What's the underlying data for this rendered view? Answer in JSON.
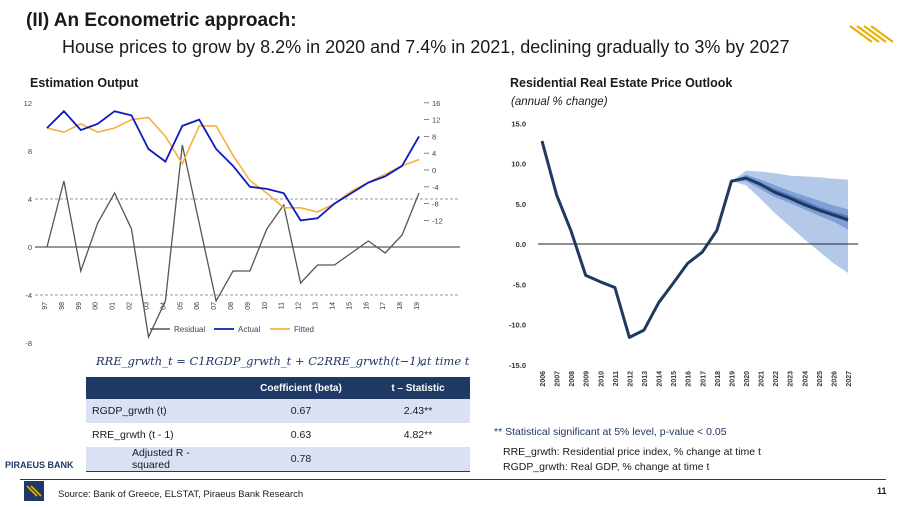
{
  "header": {
    "title": "(II)  An Econometric approach:",
    "subtitle": "House prices to grow by 8.2% in 2020 and 7.4% in 2021, declining gradually to 3% by 2027"
  },
  "left_section": {
    "title": "Estimation Output"
  },
  "right_section": {
    "title": "Residential Real Estate Price Outlook",
    "subtitle": "(annual % change)"
  },
  "colors": {
    "navy": "#1f3864",
    "actual": "#0b1bbf",
    "fitted": "#f5b041",
    "residual": "#555555",
    "fan": [
      "#dbe5f4",
      "#b4c9ea",
      "#7f9fd6",
      "#4f76c0"
    ],
    "forecast_line": "#1f3a5f"
  },
  "chart_data": [
    {
      "type": "line",
      "title": "Estimation Output",
      "categories": [
        "97",
        "98",
        "99",
        "00",
        "01",
        "02",
        "03",
        "04",
        "05",
        "06",
        "07",
        "08",
        "09",
        "10",
        "11",
        "12",
        "13",
        "14",
        "15",
        "16",
        "17",
        "18",
        "19"
      ],
      "series": [
        {
          "name": "Residual",
          "axis": "left",
          "values": [
            0,
            5.5,
            -2,
            2,
            4.5,
            1.5,
            -7.5,
            -4.5,
            8.5,
            2,
            -4.5,
            -2,
            -2,
            1.5,
            3.5,
            -3,
            -1.5,
            -1.5,
            -0.5,
            0.5,
            -0.5,
            1,
            4.5
          ]
        },
        {
          "name": "Actual",
          "axis": "right",
          "values": [
            10,
            14,
            9.5,
            11,
            14,
            13,
            5,
            2,
            10.5,
            12,
            5,
            1,
            -4,
            -4.5,
            -5.5,
            -12,
            -11.5,
            -8,
            -5.5,
            -3,
            -1.5,
            1,
            8
          ]
        },
        {
          "name": "Fitted",
          "axis": "right",
          "values": [
            10,
            9,
            11,
            9,
            10,
            12,
            12.5,
            8,
            1.5,
            10.5,
            10.5,
            3.5,
            -2.5,
            -5.5,
            -9,
            -9,
            -10,
            -8,
            -5,
            -3,
            -1,
            1,
            2.5
          ]
        }
      ],
      "y_left": {
        "ticks": [
          "12",
          "8",
          "4",
          "0",
          "-4",
          "-8"
        ],
        "range": [
          -8,
          12
        ]
      },
      "y_right": {
        "ticks": [
          "16",
          "12",
          "8",
          "4",
          "0",
          "-4",
          "-8",
          "-12"
        ],
        "range": [
          -25,
          16
        ]
      },
      "legend": [
        "Residual",
        "Actual",
        "Fitted"
      ]
    },
    {
      "type": "line",
      "title": "Residential Real Estate Price Outlook",
      "ylabel": "annual % change",
      "categories": [
        "2006",
        "2007",
        "2008",
        "2009",
        "2010",
        "2011",
        "2012",
        "2013",
        "2014",
        "2015",
        "2016",
        "2017",
        "2018",
        "2019",
        "2020",
        "2021",
        "2022",
        "2023",
        "2024",
        "2025",
        "2026",
        "2027"
      ],
      "values": [
        12.8,
        6.1,
        1.6,
        -3.9,
        -4.7,
        -5.4,
        -11.6,
        -10.7,
        -7.3,
        -4.9,
        -2.4,
        -1.0,
        1.7,
        7.8,
        8.2,
        7.4,
        6.4,
        5.7,
        4.9,
        4.2,
        3.6,
        3.0
      ],
      "fan_start": "2019",
      "fan_bands": [
        {
          "upper": [
            7.8,
            8.8,
            8.5,
            8.0,
            7.5,
            7.0,
            6.7,
            6.4,
            6.1
          ],
          "lower": [
            7.8,
            7.6,
            6.3,
            5.0,
            4.0,
            3.0,
            2.0,
            1.0,
            0.0
          ]
        },
        {
          "upper": [
            7.8,
            9.1,
            9.0,
            8.8,
            8.5,
            8.4,
            8.3,
            8.1,
            8.0
          ],
          "lower": [
            7.8,
            7.3,
            5.6,
            3.8,
            2.2,
            0.6,
            -0.9,
            -2.4,
            -3.6
          ]
        },
        {
          "upper": [
            7.8,
            8.6,
            8.0,
            7.3,
            6.6,
            6.0,
            5.4,
            4.8,
            4.3
          ],
          "lower": [
            7.8,
            7.8,
            6.8,
            5.8,
            5.1,
            4.3,
            3.5,
            2.8,
            1.8
          ]
        },
        {
          "upper": [
            7.8,
            8.4,
            7.6,
            6.8,
            6.1,
            5.4,
            4.6,
            4.0,
            3.5
          ],
          "lower": [
            7.8,
            8.0,
            7.2,
            6.4,
            5.7,
            4.9,
            4.2,
            3.5,
            2.7
          ]
        }
      ],
      "yticks": [
        "15.0",
        "10.0",
        "5.0",
        "0.0",
        "-5.0",
        "-10.0",
        "-15.0"
      ],
      "ylim": [
        -15,
        15
      ]
    }
  ],
  "formula": {
    "text": "RRE_grwth_t = C1RGDP_grwth_t + C2RRE_grwth(t−1),",
    "at_time": "at time t"
  },
  "table": {
    "headers": [
      "",
      "Coefficient (beta)",
      "t – Statistic"
    ],
    "rows": [
      {
        "label": "RGDP_grwth (t)",
        "coef": "0.67",
        "tstat": "2.43**"
      },
      {
        "label": "RRE_grwth (t - 1)",
        "coef": "0.63",
        "tstat": "4.82**"
      },
      {
        "label": "Adjusted R - squared",
        "coef": "0.78",
        "tstat": ""
      }
    ]
  },
  "notes": {
    "significance": "** Statistical significant at 5% level, p-value < 0.05",
    "rre_def": "RRE_grwth: Residential price index, % change at time t",
    "rgdp_def": "RGDP_grwth: Real GDP, % change at time t"
  },
  "footer": {
    "brand": "PIRAEUS BANK",
    "source": "Source: Bank of Greece, ELSTAT, Piraeus Bank Research",
    "page": "11"
  }
}
